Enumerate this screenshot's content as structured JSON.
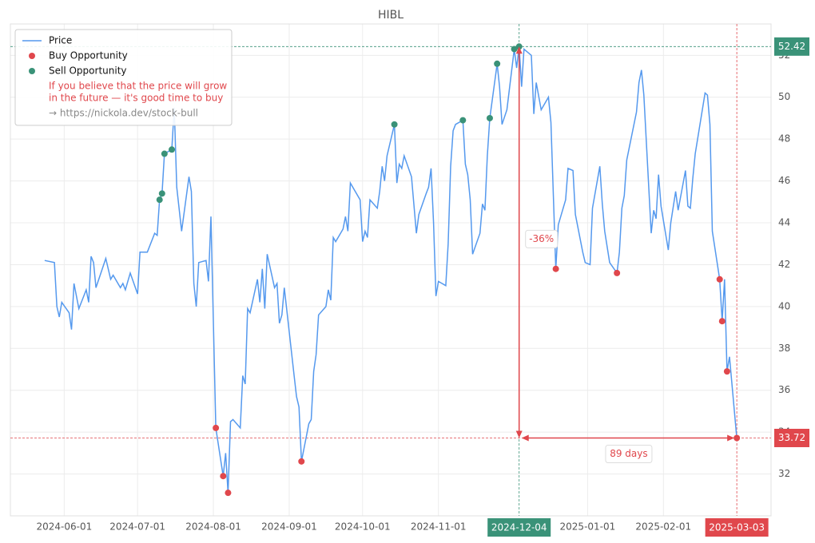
{
  "chart_data": {
    "type": "line",
    "title": "HIBL",
    "xlim": [
      "2024-05-10",
      "2025-03-17"
    ],
    "ylim": [
      30.0,
      53.5
    ],
    "xticks": [
      "2024-06-01",
      "2024-07-01",
      "2024-08-01",
      "2024-09-01",
      "2024-10-01",
      "2024-11-01",
      "2025-01-01",
      "2025-02-01"
    ],
    "yticks": [
      32,
      34,
      36,
      38,
      40,
      42,
      44,
      46,
      48,
      50,
      52
    ],
    "grid": true,
    "legend": "upper left",
    "series": [
      {
        "name": "Price",
        "type": "line",
        "color": "#5599ee",
        "x": [
          "2024-05-24",
          "2024-05-28",
          "2024-05-29",
          "2024-05-30",
          "2024-05-31",
          "2024-06-03",
          "2024-06-04",
          "2024-06-05",
          "2024-06-07",
          "2024-06-10",
          "2024-06-11",
          "2024-06-12",
          "2024-06-13",
          "2024-06-14",
          "2024-06-18",
          "2024-06-20",
          "2024-06-21",
          "2024-06-24",
          "2024-06-25",
          "2024-06-26",
          "2024-06-28",
          "2024-07-01",
          "2024-07-02",
          "2024-07-05",
          "2024-07-08",
          "2024-07-09",
          "2024-07-10",
          "2024-07-11",
          "2024-07-12",
          "2024-07-15",
          "2024-07-16",
          "2024-07-17",
          "2024-07-19",
          "2024-07-22",
          "2024-07-23",
          "2024-07-24",
          "2024-07-25",
          "2024-07-26",
          "2024-07-29",
          "2024-07-30",
          "2024-07-31",
          "2024-08-02",
          "2024-08-05",
          "2024-08-06",
          "2024-08-07",
          "2024-08-08",
          "2024-08-09",
          "2024-08-12",
          "2024-08-13",
          "2024-08-14",
          "2024-08-15",
          "2024-08-16",
          "2024-08-19",
          "2024-08-20",
          "2024-08-21",
          "2024-08-22",
          "2024-08-23",
          "2024-08-26",
          "2024-08-27",
          "2024-08-28",
          "2024-08-29",
          "2024-08-30",
          "2024-09-03",
          "2024-09-04",
          "2024-09-05",
          "2024-09-06",
          "2024-09-09",
          "2024-09-10",
          "2024-09-11",
          "2024-09-12",
          "2024-09-13",
          "2024-09-16",
          "2024-09-17",
          "2024-09-18",
          "2024-09-19",
          "2024-09-20",
          "2024-09-23",
          "2024-09-24",
          "2024-09-25",
          "2024-09-26",
          "2024-09-30",
          "2024-10-01",
          "2024-10-02",
          "2024-10-03",
          "2024-10-04",
          "2024-10-07",
          "2024-10-08",
          "2024-10-09",
          "2024-10-10",
          "2024-10-11",
          "2024-10-14",
          "2024-10-15",
          "2024-10-16",
          "2024-10-17",
          "2024-10-18",
          "2024-10-21",
          "2024-10-23",
          "2024-10-24",
          "2024-10-27",
          "2024-10-28",
          "2024-10-29",
          "2024-10-30",
          "2024-10-31",
          "2024-11-01",
          "2024-11-04",
          "2024-11-05",
          "2024-11-06",
          "2024-11-07",
          "2024-11-08",
          "2024-11-11",
          "2024-11-12",
          "2024-11-13",
          "2024-11-14",
          "2024-11-15",
          "2024-11-18",
          "2024-11-19",
          "2024-11-20",
          "2024-11-21",
          "2024-11-22",
          "2024-11-25",
          "2024-11-26",
          "2024-11-27",
          "2024-11-29",
          "2024-12-02",
          "2024-12-03",
          "2024-12-04",
          "2024-12-05",
          "2024-12-06",
          "2024-12-09",
          "2024-12-10",
          "2024-12-11",
          "2024-12-13",
          "2024-12-16",
          "2024-12-17",
          "2024-12-19",
          "2024-12-20",
          "2024-12-23",
          "2024-12-24",
          "2024-12-26",
          "2024-12-27",
          "2024-12-30",
          "2024-12-31",
          "2025-01-02",
          "2025-01-03",
          "2025-01-06",
          "2025-01-07",
          "2025-01-08",
          "2025-01-10",
          "2025-01-13",
          "2025-01-14",
          "2025-01-15",
          "2025-01-16",
          "2025-01-17",
          "2025-01-21",
          "2025-01-22",
          "2025-01-23",
          "2025-01-24",
          "2025-01-27",
          "2025-01-28",
          "2025-01-29",
          "2025-01-30",
          "2025-01-31",
          "2025-02-03",
          "2025-02-04",
          "2025-02-06",
          "2025-02-07",
          "2025-02-10",
          "2025-02-11",
          "2025-02-12",
          "2025-02-13",
          "2025-02-14",
          "2025-02-18",
          "2025-02-19",
          "2025-02-20",
          "2025-02-21",
          "2025-02-24",
          "2025-02-25",
          "2025-02-26",
          "2025-02-27",
          "2025-02-28",
          "2025-03-03"
        ],
        "values": [
          42.2,
          42.1,
          40.0,
          39.5,
          40.2,
          39.7,
          38.9,
          41.1,
          39.9,
          40.8,
          40.2,
          42.4,
          42.1,
          40.9,
          42.3,
          41.3,
          41.5,
          40.9,
          41.1,
          40.8,
          41.6,
          40.6,
          42.6,
          42.6,
          43.5,
          43.4,
          45.1,
          45.4,
          47.3,
          47.5,
          49.5,
          45.7,
          43.6,
          46.2,
          45.5,
          41.1,
          40.0,
          42.1,
          42.2,
          41.2,
          44.3,
          34.2,
          31.9,
          33.0,
          31.1,
          34.5,
          34.6,
          34.2,
          36.7,
          36.3,
          39.9,
          39.7,
          41.3,
          40.2,
          41.8,
          39.9,
          42.5,
          40.9,
          41.1,
          39.2,
          39.6,
          40.9,
          36.7,
          35.7,
          35.2,
          32.6,
          34.4,
          34.6,
          36.9,
          37.7,
          39.6,
          40.0,
          40.8,
          40.3,
          43.3,
          43.1,
          43.7,
          44.3,
          43.6,
          45.9,
          45.1,
          43.1,
          43.6,
          43.3,
          45.1,
          44.7,
          45.5,
          46.7,
          46.0,
          47.2,
          48.7,
          45.9,
          46.8,
          46.6,
          47.2,
          46.2,
          43.5,
          44.4,
          45.4,
          45.7,
          46.6,
          44.0,
          40.5,
          41.2,
          41.0,
          43.0,
          46.7,
          48.4,
          48.7,
          48.9,
          46.8,
          46.3,
          45.1,
          42.5,
          43.5,
          44.9,
          44.6,
          47.2,
          49.0,
          51.6,
          50.5,
          48.7,
          49.4,
          52.3,
          51.4,
          52.42,
          50.5,
          52.3,
          52.0,
          49.2,
          50.7,
          49.4,
          50.0,
          48.8,
          41.8,
          43.9,
          45.1,
          46.6,
          46.5,
          44.4,
          42.6,
          42.1,
          42.0,
          44.7,
          46.7,
          44.9,
          43.6,
          42.1,
          41.6,
          42.6,
          44.7,
          45.3,
          47.0,
          49.3,
          50.7,
          51.3,
          50.1,
          43.5,
          44.6,
          44.2,
          46.3,
          44.8,
          42.7,
          44.0,
          45.5,
          44.6,
          46.5,
          44.8,
          44.7,
          46.1,
          47.3,
          50.2,
          50.1,
          48.7,
          43.6,
          41.3,
          39.3,
          41.3,
          36.9,
          37.6,
          33.72
        ]
      },
      {
        "name": "Buy Opportunity",
        "type": "scatter",
        "color": "#e0474c",
        "x": [
          "2024-08-02",
          "2024-08-05",
          "2024-08-07",
          "2024-09-06",
          "2024-12-19",
          "2025-01-13",
          "2025-02-24",
          "2025-02-25",
          "2025-02-27",
          "2025-03-03"
        ],
        "values": [
          34.2,
          31.9,
          31.1,
          32.6,
          41.8,
          41.6,
          41.3,
          39.3,
          36.9,
          33.72
        ]
      },
      {
        "name": "Sell Opportunity",
        "type": "scatter",
        "color": "#3a9278",
        "x": [
          "2024-07-10",
          "2024-07-11",
          "2024-07-12",
          "2024-07-15",
          "2024-10-14",
          "2024-11-11",
          "2024-11-22",
          "2024-11-25",
          "2024-12-02",
          "2024-12-04"
        ],
        "values": [
          45.1,
          45.4,
          47.3,
          47.5,
          48.7,
          48.9,
          49.0,
          51.6,
          52.3,
          52.42
        ]
      }
    ],
    "markers": [
      {
        "x": "2024-12-04",
        "y": 52.42,
        "color": "#3a9278"
      },
      {
        "x": "2025-03-03",
        "y": 33.72,
        "color": "#e0474c"
      }
    ],
    "change_label": "-36%",
    "duration_label": "89 days",
    "note": [
      "If you believe that the price will grow",
      "in the future — it's good time to buy"
    ],
    "link": "→ https://nickola.dev/stock-bull"
  }
}
